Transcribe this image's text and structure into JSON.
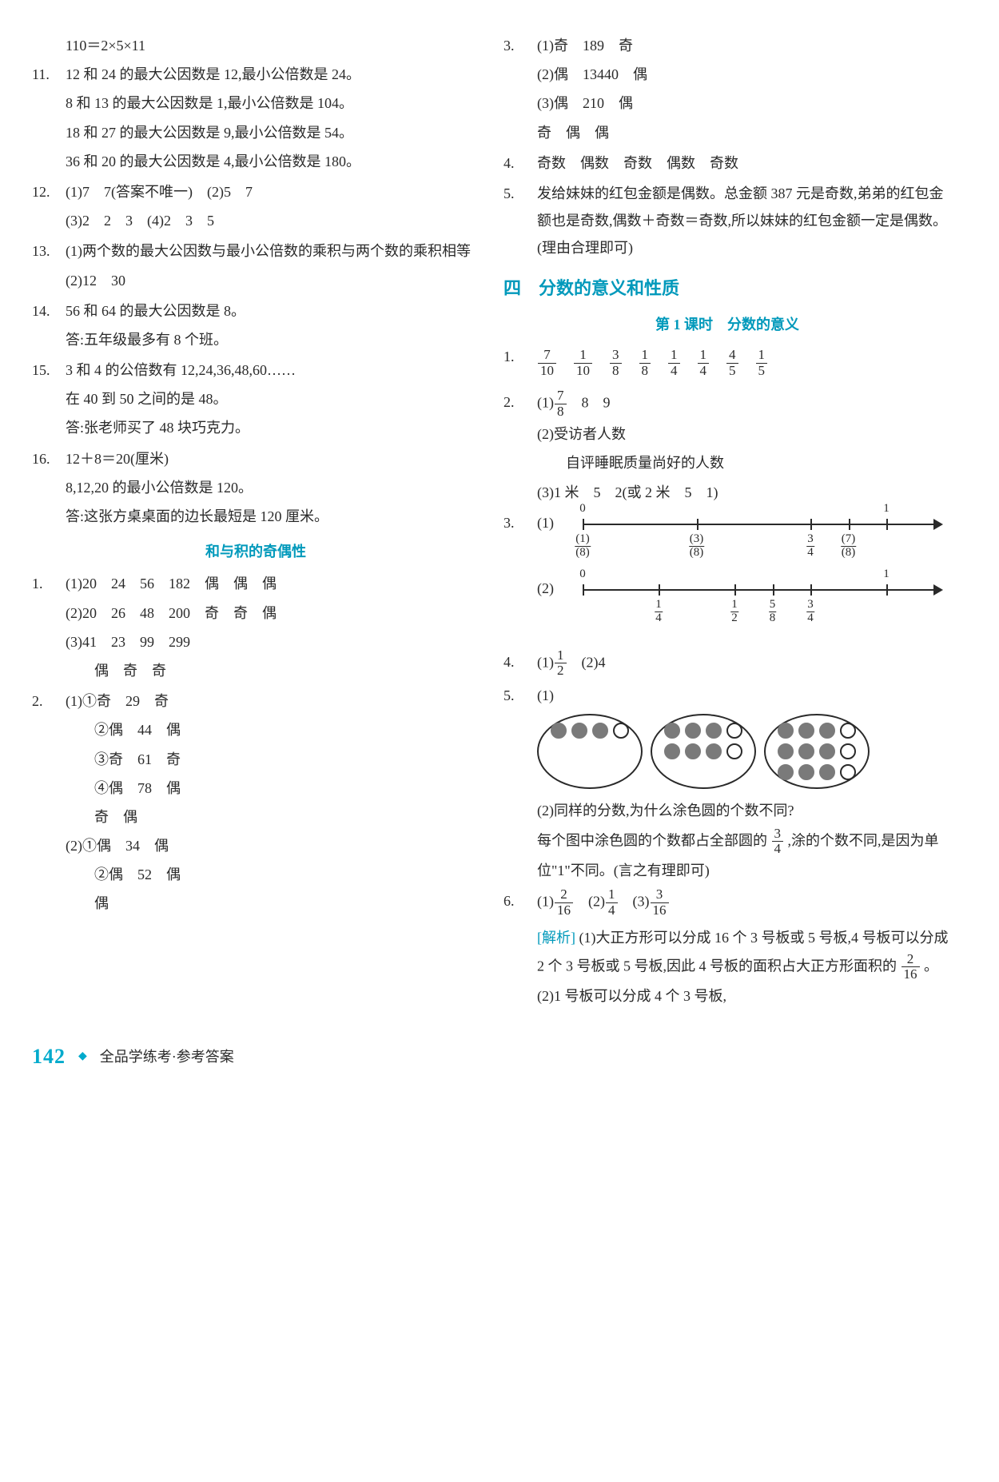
{
  "left": {
    "first_line": "110＝2×5×11",
    "items": [
      {
        "num": "11.",
        "lines": [
          "12 和 24 的最大公因数是 12,最小公倍数是 24。",
          "8 和 13 的最大公因数是 1,最小公倍数是 104。",
          "18 和 27 的最大公因数是 9,最小公倍数是 54。",
          "36 和 20 的最大公因数是 4,最小公倍数是 180。"
        ]
      },
      {
        "num": "12.",
        "lines": [
          "(1)7　7(答案不唯一)　(2)5　7",
          "(3)2　2　3　(4)2　3　5"
        ]
      },
      {
        "num": "13.",
        "lines": [
          "(1)两个数的最大公因数与最小公倍数的乘积与两个数的乘积相等",
          "(2)12　30"
        ]
      },
      {
        "num": "14.",
        "lines": [
          "56 和 64 的最大公因数是 8。",
          "答:五年级最多有 8 个班。"
        ]
      },
      {
        "num": "15.",
        "lines": [
          "3 和 4 的公倍数有 12,24,36,48,60……",
          "在 40 到 50 之间的是 48。",
          "答:张老师买了 48 块巧克力。"
        ]
      },
      {
        "num": "16.",
        "lines": [
          "12＋8＝20(厘米)",
          "8,12,20 的最小公倍数是 120。",
          "答:这张方桌桌面的边长最短是 120 厘米。"
        ]
      }
    ],
    "sub_heading": "和与积的奇偶性",
    "parity": [
      {
        "num": "1.",
        "lines": [
          "(1)20　24　56　182　偶　偶　偶",
          "(2)20　26　48　200　奇　奇　偶",
          "(3)41　23　99　299",
          "　　偶　奇　奇"
        ]
      },
      {
        "num": "2.",
        "lines": [
          "(1)①奇　29　奇",
          "　　②偶　44　偶",
          "　　③奇　61　奇",
          "　　④偶　78　偶",
          "　　奇　偶",
          "(2)①偶　34　偶",
          "　　②偶　52　偶",
          "　　偶"
        ]
      }
    ]
  },
  "right": {
    "q3": {
      "num": "3.",
      "lines": [
        "(1)奇　189　奇",
        "(2)偶　13440　偶",
        "(3)偶　210　偶",
        "奇　偶　偶"
      ]
    },
    "q4": {
      "num": "4.",
      "text": "奇数　偶数　奇数　偶数　奇数"
    },
    "q5": {
      "num": "5.",
      "text": "发给妹妹的红包金额是偶数。总金额 387 元是奇数,弟弟的红包金额也是奇数,偶数＋奇数＝奇数,所以妹妹的红包金额一定是偶数。(理由合理即可)"
    },
    "chapter": "四　分数的意义和性质",
    "lesson": "第 1 课时　分数的意义",
    "fr1": {
      "num": "1.",
      "fracs": [
        [
          "7",
          "10"
        ],
        [
          "1",
          "10"
        ],
        [
          "3",
          "8"
        ],
        [
          "1",
          "8"
        ],
        [
          "1",
          "4"
        ],
        [
          "1",
          "4"
        ],
        [
          "4",
          "5"
        ],
        [
          "1",
          "5"
        ]
      ]
    },
    "fr2": {
      "num": "2.",
      "lines": [
        "　8　9",
        "(2)受访者人数",
        "　　自评睡眠质量尚好的人数",
        "(3)1 米　5　2(或 2 米　5　1)"
      ],
      "l1_pref": "(1)",
      "l1_frac": [
        "7",
        "8"
      ]
    },
    "fr3": {
      "num": "3.",
      "sub1": "(1)",
      "sub2": "(2)",
      "line1": {
        "ticks": [
          {
            "pos": 0,
            "top": "0",
            "bot_n": "1",
            "bot_d": "8",
            "paren": true
          },
          {
            "pos": 37.5,
            "bot_n": "3",
            "bot_d": "8",
            "paren": true
          },
          {
            "pos": 75,
            "bot_n": "3",
            "bot_d": "4"
          },
          {
            "pos": 87.5,
            "bot_n": "7",
            "bot_d": "8",
            "paren": true
          },
          {
            "pos": 100,
            "top": "1"
          }
        ]
      },
      "line2": {
        "ticks": [
          {
            "pos": 0,
            "top": "0"
          },
          {
            "pos": 25,
            "bot_n": "1",
            "bot_d": "4"
          },
          {
            "pos": 50,
            "bot_n": "1",
            "bot_d": "2"
          },
          {
            "pos": 62.5,
            "bot_n": "5",
            "bot_d": "8"
          },
          {
            "pos": 75,
            "bot_n": "3",
            "bot_d": "4"
          },
          {
            "pos": 100,
            "top": "1"
          }
        ]
      }
    },
    "fr4": {
      "num": "4.",
      "p1": "(1)",
      "f1": [
        "1",
        "2"
      ],
      "p2": "　(2)4"
    },
    "fr5": {
      "num": "5.",
      "sub1": "(1)",
      "ovals": [
        {
          "cls": "g4",
          "dots": [
            "f",
            "f",
            "f",
            "e"
          ]
        },
        {
          "cls": "g8",
          "dots": [
            "f",
            "f",
            "f",
            "e",
            "f",
            "f",
            "f",
            "e"
          ]
        },
        {
          "cls": "g12",
          "dots": [
            "f",
            "f",
            "f",
            "e",
            "f",
            "f",
            "f",
            "e",
            "f",
            "f",
            "f",
            "e"
          ]
        }
      ],
      "sub2_l1": "(2)同样的分数,为什么涂色圆的个数不同?",
      "sub2_l2a": "每个图中涂色圆的个数都占全部圆的",
      "sub2_frac": [
        "3",
        "4"
      ],
      "sub2_l2b": ",涂的个数不同,是因为单位\"1\"不同。(言之有理即可)"
    },
    "fr6": {
      "num": "6.",
      "p1": "(1)",
      "f1": [
        "2",
        "16"
      ],
      "p2": "　(2)",
      "f2": [
        "1",
        "4"
      ],
      "p3": "　(3)",
      "f3": [
        "3",
        "16"
      ],
      "analysis_label": "[解析]",
      "analysis_a": "(1)大正方形可以分成 16 个 3 号板或 5 号板,4 号板可以分成 2 个 3 号板或 5 号板,因此 4 号板的面积占大正方形面积的",
      "analysis_frac": [
        "2",
        "16"
      ],
      "analysis_b": "。(2)1 号板可以分成 4 个 3 号板,"
    }
  },
  "footer": {
    "page": "142",
    "text": "全品学练考·参考答案"
  },
  "colors": {
    "accent": "#0099bb",
    "text": "#2a2a2a"
  }
}
